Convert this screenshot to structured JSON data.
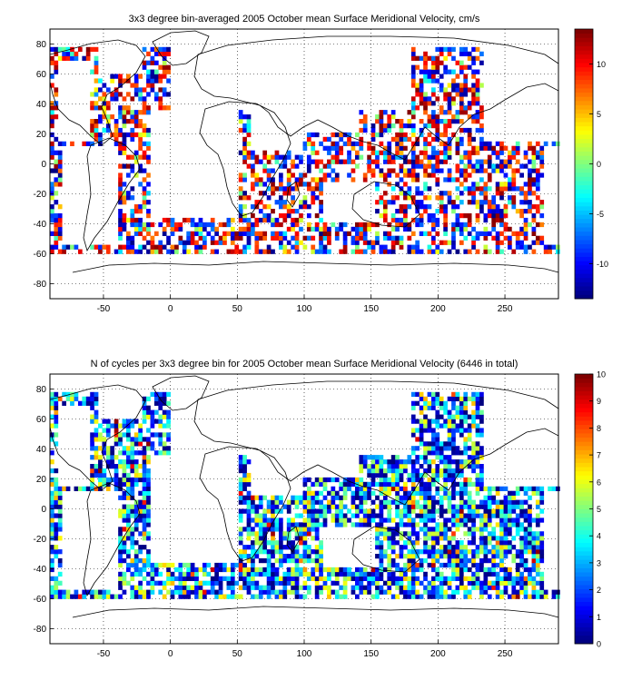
{
  "chart_data": [
    {
      "type": "heatmap",
      "title": "3x3 degree bin-averaged 2005 October mean Surface Meridional Velocity, cm/s",
      "x_ticks": [
        -50,
        0,
        50,
        100,
        150,
        200,
        250
      ],
      "y_ticks": [
        -80,
        -60,
        -40,
        -20,
        0,
        20,
        40,
        60,
        80
      ],
      "xlim": [
        -90,
        290
      ],
      "ylim": [
        -90,
        90
      ],
      "grid": true,
      "colormap": "jet",
      "colorbar": {
        "range": [
          -13.5,
          13.5
        ],
        "ticks": [
          -10,
          -5,
          0,
          5,
          10
        ],
        "placement": "right"
      }
    },
    {
      "type": "heatmap",
      "title": "N of cycles per 3x3 degree bin for 2005 October mean Surface Meridional Velocity (6446 in total)",
      "x_ticks": [
        -50,
        0,
        50,
        100,
        150,
        200,
        250
      ],
      "y_ticks": [
        -80,
        -60,
        -40,
        -20,
        0,
        20,
        40,
        60,
        80
      ],
      "xlim": [
        -90,
        290
      ],
      "ylim": [
        -90,
        90
      ],
      "grid": true,
      "colormap": "jet",
      "colorbar": {
        "range": [
          0,
          10
        ],
        "ticks": [
          0,
          1,
          2,
          3,
          4,
          5,
          6,
          7,
          8,
          9,
          10
        ],
        "placement": "right"
      }
    }
  ]
}
